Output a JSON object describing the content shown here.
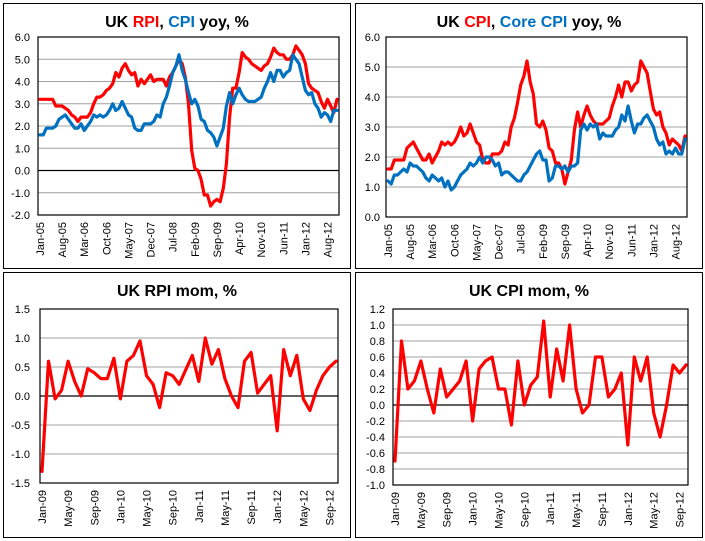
{
  "chart_data": [
    {
      "id": "rpi-cpi-yoy",
      "type": "line",
      "title_parts": [
        {
          "text": "UK ",
          "color": "#000000"
        },
        {
          "text": "RPI",
          "color": "#ff0000"
        },
        {
          "text": ", ",
          "color": "#000000"
        },
        {
          "text": "CPI",
          "color": "#0070c0"
        },
        {
          "text": " yoy, %",
          "color": "#000000"
        }
      ],
      "title": "UK RPI, CPI yoy, %",
      "xlabel": "",
      "ylabel": "",
      "ylim": [
        -2.0,
        6.0
      ],
      "yticks": [
        -2.0,
        -1.0,
        0.0,
        1.0,
        2.0,
        3.0,
        4.0,
        5.0,
        6.0
      ],
      "ytick_decimals": 1,
      "xtick_labels": [
        "Jan-05",
        "Aug-05",
        "Mar-06",
        "Oct-06",
        "May-07",
        "Dec-07",
        "Jul-08",
        "Feb-09",
        "Sep-09",
        "Apr-10",
        "Nov-10",
        "Jun-11",
        "Jan-12",
        "Aug-12"
      ],
      "xtick_every": 7,
      "grid": true,
      "legend": "none (colored title)",
      "series": [
        {
          "name": "RPI",
          "color": "#ff0000",
          "values": [
            3.2,
            3.2,
            3.2,
            3.2,
            3.2,
            2.9,
            2.9,
            2.9,
            2.8,
            2.7,
            2.5,
            2.4,
            2.2,
            2.4,
            2.4,
            2.4,
            2.6,
            3.0,
            3.3,
            3.3,
            3.4,
            3.6,
            3.7,
            3.9,
            4.4,
            4.2,
            4.6,
            4.8,
            4.5,
            4.3,
            4.4,
            3.8,
            4.1,
            3.9,
            4.1,
            4.3,
            4.0,
            4.1,
            4.1,
            4.1,
            3.8,
            4.2,
            4.4,
            4.7,
            5.0,
            4.8,
            4.2,
            3.0,
            0.9,
            0.1,
            0.0,
            -0.4,
            -1.1,
            -1.1,
            -1.6,
            -1.4,
            -1.3,
            -1.4,
            -0.8,
            0.3,
            2.4,
            3.7,
            3.7,
            4.4,
            5.3,
            5.1,
            5.0,
            4.8,
            4.7,
            4.6,
            4.5,
            4.7,
            4.8,
            5.1,
            5.5,
            5.3,
            5.2,
            5.2,
            5.0,
            5.0,
            5.2,
            5.6,
            5.4,
            5.2,
            4.8,
            3.9,
            3.7,
            3.6,
            3.5,
            3.1,
            2.8,
            3.2,
            2.9,
            2.6,
            3.2
          ]
        },
        {
          "name": "CPI",
          "color": "#0070c0",
          "values": [
            1.6,
            1.6,
            1.9,
            1.9,
            1.9,
            2.0,
            2.3,
            2.4,
            2.5,
            2.3,
            2.1,
            1.9,
            1.9,
            2.1,
            1.8,
            2.0,
            2.2,
            2.5,
            2.4,
            2.5,
            2.4,
            2.5,
            2.7,
            3.0,
            2.7,
            2.8,
            3.1,
            2.8,
            2.5,
            2.4,
            1.9,
            1.8,
            1.8,
            2.1,
            2.1,
            2.1,
            2.2,
            2.5,
            2.4,
            3.0,
            3.3,
            3.8,
            4.4,
            4.7,
            5.2,
            4.5,
            4.1,
            3.5,
            3.0,
            3.2,
            2.9,
            2.3,
            2.2,
            1.8,
            1.7,
            1.5,
            1.1,
            1.5,
            1.9,
            2.9,
            3.5,
            3.0,
            3.4,
            3.7,
            3.4,
            3.2,
            3.1,
            3.1,
            3.1,
            3.2,
            3.3,
            3.7,
            4.0,
            4.4,
            4.0,
            4.5,
            4.5,
            4.2,
            4.4,
            4.5,
            5.2,
            5.0,
            4.8,
            4.2,
            3.6,
            3.4,
            3.5,
            3.0,
            2.8,
            2.4,
            2.6,
            2.5,
            2.2,
            2.7,
            2.7
          ]
        }
      ]
    },
    {
      "id": "cpi-core-yoy",
      "type": "line",
      "title_parts": [
        {
          "text": "UK ",
          "color": "#000000"
        },
        {
          "text": "CPI",
          "color": "#ff0000"
        },
        {
          "text": ", ",
          "color": "#000000"
        },
        {
          "text": "Core CPI",
          "color": "#0070c0"
        },
        {
          "text": " yoy, %",
          "color": "#000000"
        }
      ],
      "title": "UK CPI, Core CPI yoy, %",
      "xlabel": "",
      "ylabel": "",
      "ylim": [
        0.0,
        6.0
      ],
      "yticks": [
        0.0,
        1.0,
        2.0,
        3.0,
        4.0,
        5.0,
        6.0
      ],
      "ytick_decimals": 1,
      "xtick_labels": [
        "Jan-05",
        "Aug-05",
        "Mar-06",
        "Oct-06",
        "May-07",
        "Dec-07",
        "Jul-08",
        "Feb-09",
        "Sep-09",
        "Apr-10",
        "Nov-10",
        "Jun-11",
        "Jan-12",
        "Aug-12"
      ],
      "xtick_every": 7,
      "grid": true,
      "legend": "none (colored title)",
      "series": [
        {
          "name": "CPI",
          "color": "#ff0000",
          "values": [
            1.6,
            1.6,
            1.9,
            1.9,
            1.9,
            1.9,
            2.3,
            2.4,
            2.5,
            2.3,
            2.1,
            1.9,
            1.9,
            2.1,
            1.8,
            2.0,
            2.2,
            2.5,
            2.4,
            2.5,
            2.4,
            2.5,
            2.7,
            3.0,
            2.7,
            2.8,
            3.1,
            2.8,
            2.5,
            2.4,
            1.9,
            1.8,
            1.8,
            2.1,
            2.1,
            2.1,
            2.2,
            2.5,
            2.4,
            3.0,
            3.3,
            3.8,
            4.4,
            4.7,
            5.2,
            4.5,
            4.1,
            3.1,
            3.0,
            3.2,
            2.9,
            2.3,
            2.2,
            1.8,
            1.8,
            1.6,
            1.1,
            1.5,
            1.9,
            2.9,
            3.5,
            3.0,
            3.4,
            3.7,
            3.4,
            3.2,
            3.1,
            3.1,
            3.1,
            3.2,
            3.3,
            3.7,
            4.0,
            4.4,
            4.0,
            4.5,
            4.5,
            4.2,
            4.4,
            4.5,
            5.2,
            5.0,
            4.8,
            4.2,
            3.6,
            3.4,
            3.5,
            3.0,
            2.8,
            2.4,
            2.6,
            2.5,
            2.4,
            2.2,
            2.7
          ]
        },
        {
          "name": "Core CPI",
          "color": "#0070c0",
          "values": [
            1.2,
            1.1,
            1.4,
            1.4,
            1.5,
            1.6,
            1.5,
            1.8,
            1.7,
            1.7,
            1.6,
            1.5,
            1.3,
            1.2,
            1.4,
            1.3,
            1.2,
            1.3,
            1.0,
            1.2,
            0.9,
            1.0,
            1.2,
            1.4,
            1.5,
            1.6,
            1.8,
            1.7,
            1.8,
            2.0,
            1.8,
            2.0,
            2.0,
            1.9,
            1.7,
            1.8,
            1.4,
            1.5,
            1.5,
            1.4,
            1.3,
            1.2,
            1.2,
            1.4,
            1.5,
            1.7,
            1.9,
            2.1,
            2.2,
            1.9,
            1.9,
            1.2,
            1.3,
            1.7,
            1.7,
            1.6,
            1.7,
            1.5,
            1.7,
            1.7,
            1.8,
            2.9,
            3.1,
            2.9,
            3.1,
            3.0,
            3.1,
            2.6,
            2.8,
            2.7,
            2.7,
            2.7,
            2.9,
            3.0,
            3.4,
            3.2,
            3.7,
            3.2,
            2.8,
            3.1,
            3.1,
            3.3,
            3.4,
            3.2,
            3.0,
            2.6,
            2.4,
            2.5,
            2.1,
            2.2,
            2.1,
            2.3,
            2.1,
            2.1,
            2.6
          ]
        }
      ]
    },
    {
      "id": "rpi-mom",
      "type": "line",
      "title_parts": [
        {
          "text": "UK RPI  mom, %",
          "color": "#000000"
        }
      ],
      "title": "UK RPI  mom, %",
      "xlabel": "",
      "ylabel": "",
      "ylim": [
        -1.5,
        1.5
      ],
      "yticks": [
        -1.5,
        -1.0,
        -0.5,
        0.0,
        0.5,
        1.0,
        1.5
      ],
      "ytick_decimals": 1,
      "xtick_labels": [
        "Jan-09",
        "May-09",
        "Sep-09",
        "Jan-10",
        "May-10",
        "Sep-10",
        "Jan-11",
        "May-11",
        "Sep-11",
        "Jan-12",
        "May-12",
        "Sep-12"
      ],
      "xtick_every": 4,
      "grid": true,
      "legend": "none",
      "series": [
        {
          "name": "RPI mom",
          "color": "#ff0000",
          "values": [
            -1.3,
            0.6,
            -0.05,
            0.1,
            0.6,
            0.25,
            0.0,
            0.47,
            0.4,
            0.3,
            0.3,
            0.65,
            -0.05,
            0.6,
            0.7,
            0.95,
            0.35,
            0.2,
            -0.2,
            0.4,
            0.35,
            0.2,
            0.45,
            0.7,
            0.25,
            1.0,
            0.55,
            0.8,
            0.3,
            0.0,
            -0.2,
            0.6,
            0.75,
            0.05,
            0.2,
            0.35,
            -0.6,
            0.8,
            0.35,
            0.7,
            -0.05,
            -0.25,
            0.1,
            0.35,
            0.5,
            0.6
          ]
        }
      ]
    },
    {
      "id": "cpi-mom",
      "type": "line",
      "title_parts": [
        {
          "text": "UK CPI  mom, %",
          "color": "#000000"
        }
      ],
      "title": "UK CPI  mom, %",
      "xlabel": "",
      "ylabel": "",
      "ylim": [
        -1.0,
        1.2
      ],
      "yticks": [
        -1.0,
        -0.8,
        -0.6,
        -0.4,
        -0.2,
        0.0,
        0.2,
        0.4,
        0.6,
        0.8,
        1.0,
        1.2
      ],
      "ytick_decimals": 1,
      "xtick_labels": [
        "Jan-09",
        "May-09",
        "Sep-09",
        "Jan-10",
        "May-10",
        "Sep-10",
        "Jan-11",
        "May-11",
        "Sep-11",
        "Jan-12",
        "May-12",
        "Sep-12"
      ],
      "xtick_every": 4,
      "grid": true,
      "legend": "none",
      "series": [
        {
          "name": "CPI mom",
          "color": "#ff0000",
          "values": [
            -0.7,
            0.8,
            0.2,
            0.3,
            0.55,
            0.2,
            -0.1,
            0.45,
            0.1,
            0.2,
            0.3,
            0.55,
            -0.2,
            0.45,
            0.55,
            0.6,
            0.2,
            0.2,
            -0.25,
            0.55,
            0.0,
            0.25,
            0.35,
            1.05,
            0.1,
            0.7,
            0.3,
            1.0,
            0.2,
            -0.1,
            0.0,
            0.6,
            0.6,
            0.1,
            0.2,
            0.4,
            -0.5,
            0.6,
            0.3,
            0.6,
            -0.1,
            -0.4,
            0.0,
            0.5,
            0.4,
            0.5
          ]
        }
      ]
    }
  ]
}
